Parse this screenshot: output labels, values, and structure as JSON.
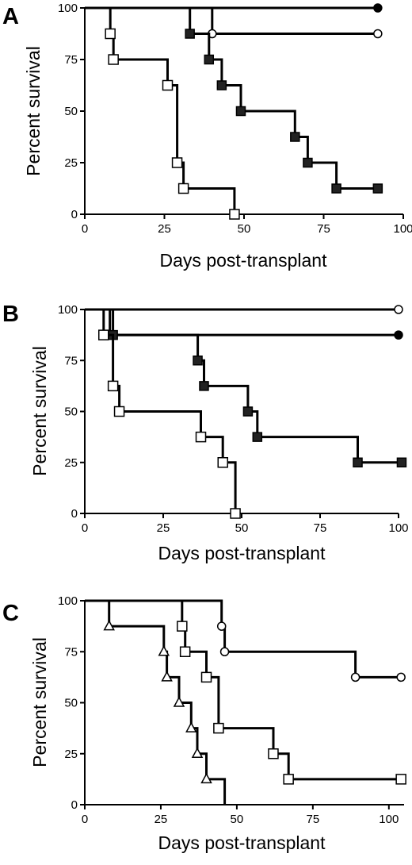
{
  "chart_data": [
    {
      "type": "line",
      "panel_label": "A",
      "xlabel": "Days post-transplant",
      "ylabel": "Percent survival",
      "xlim": [
        0,
        100
      ],
      "ylim": [
        0,
        100
      ],
      "xticks": [
        0,
        25,
        50,
        75,
        100
      ],
      "yticks": [
        0,
        25,
        50,
        75,
        100
      ],
      "grid": false,
      "series": [
        {
          "marker": "filled-circle",
          "steps": [
            [
              0,
              100
            ],
            [
              92,
              100
            ]
          ],
          "markers": [
            [
              92,
              100
            ]
          ]
        },
        {
          "marker": "open-circle",
          "steps": [
            [
              0,
              100
            ],
            [
              40,
              100
            ],
            [
              40,
              87.5
            ],
            [
              92,
              87.5
            ]
          ],
          "markers": [
            [
              40,
              87.5
            ],
            [
              92,
              87.5
            ]
          ]
        },
        {
          "marker": "filled-square",
          "steps": [
            [
              0,
              100
            ],
            [
              33,
              100
            ],
            [
              33,
              87.5
            ],
            [
              39,
              87.5
            ],
            [
              39,
              75
            ],
            [
              43,
              75
            ],
            [
              43,
              62.5
            ],
            [
              49,
              62.5
            ],
            [
              49,
              50
            ],
            [
              66,
              50
            ],
            [
              66,
              37.5
            ],
            [
              70,
              37.5
            ],
            [
              70,
              25
            ],
            [
              79,
              25
            ],
            [
              79,
              12.5
            ],
            [
              92,
              12.5
            ]
          ],
          "markers": [
            [
              33,
              87.5
            ],
            [
              39,
              75
            ],
            [
              43,
              62.5
            ],
            [
              49,
              50
            ],
            [
              66,
              37.5
            ],
            [
              70,
              25
            ],
            [
              79,
              12.5
            ],
            [
              92,
              12.5
            ]
          ]
        },
        {
          "marker": "open-square",
          "steps": [
            [
              8,
              100
            ],
            [
              8,
              87.5
            ],
            [
              9,
              87.5
            ],
            [
              9,
              75
            ],
            [
              26,
              75
            ],
            [
              26,
              62.5
            ],
            [
              29,
              62.5
            ],
            [
              29,
              25
            ],
            [
              31,
              25
            ],
            [
              31,
              12.5
            ],
            [
              47,
              12.5
            ],
            [
              47,
              0
            ]
          ],
          "markers": [
            [
              8,
              87.5
            ],
            [
              9,
              75
            ],
            [
              26,
              62.5
            ],
            [
              29,
              25
            ],
            [
              31,
              12.5
            ],
            [
              47,
              0
            ]
          ]
        }
      ]
    },
    {
      "type": "line",
      "panel_label": "B",
      "xlabel": "Days post-transplant",
      "ylabel": "Percent survival",
      "xlim": [
        0,
        100
      ],
      "ylim": [
        0,
        100
      ],
      "xticks": [
        0,
        25,
        50,
        75,
        100
      ],
      "yticks": [
        0,
        25,
        50,
        75,
        100
      ],
      "grid": false,
      "series": [
        {
          "marker": "open-circle",
          "steps": [
            [
              0,
              100
            ],
            [
              100,
              100
            ]
          ],
          "markers": [
            [
              100,
              100
            ]
          ]
        },
        {
          "marker": "filled-circle",
          "steps": [
            [
              0,
              100
            ],
            [
              8,
              100
            ],
            [
              8,
              87.5
            ],
            [
              100,
              87.5
            ]
          ],
          "markers": [
            [
              100,
              87.5
            ]
          ]
        },
        {
          "marker": "filled-square",
          "steps": [
            [
              0,
              100
            ],
            [
              9,
              100
            ],
            [
              9,
              87.5
            ],
            [
              36,
              87.5
            ],
            [
              36,
              75
            ],
            [
              38,
              75
            ],
            [
              38,
              62.5
            ],
            [
              52,
              62.5
            ],
            [
              52,
              50
            ],
            [
              55,
              50
            ],
            [
              55,
              37.5
            ],
            [
              87,
              37.5
            ],
            [
              87,
              25
            ],
            [
              101,
              25
            ]
          ],
          "markers": [
            [
              9,
              87.5
            ],
            [
              36,
              75
            ],
            [
              38,
              62.5
            ],
            [
              52,
              50
            ],
            [
              55,
              37.5
            ],
            [
              87,
              25
            ],
            [
              101,
              25
            ]
          ]
        },
        {
          "marker": "open-square",
          "steps": [
            [
              6,
              100
            ],
            [
              6,
              87.5
            ],
            [
              9,
              87.5
            ],
            [
              9,
              62.5
            ],
            [
              11,
              62.5
            ],
            [
              11,
              50
            ],
            [
              37,
              50
            ],
            [
              37,
              37.5
            ],
            [
              44,
              37.5
            ],
            [
              44,
              25
            ],
            [
              48,
              25
            ],
            [
              48,
              0
            ]
          ],
          "markers": [
            [
              6,
              87.5
            ],
            [
              9,
              62.5
            ],
            [
              11,
              50
            ],
            [
              37,
              37.5
            ],
            [
              44,
              25
            ],
            [
              48,
              0
            ]
          ]
        }
      ]
    },
    {
      "type": "line",
      "panel_label": "C",
      "xlabel": "Days post-transplant",
      "ylabel": "Percent survival",
      "xlim": [
        0,
        105
      ],
      "ylim": [
        0,
        100
      ],
      "xticks": [
        0,
        25,
        50,
        75,
        100
      ],
      "yticks": [
        0,
        25,
        50,
        75,
        100
      ],
      "grid": false,
      "series": [
        {
          "marker": "open-circle",
          "steps": [
            [
              0,
              100
            ],
            [
              45,
              100
            ],
            [
              45,
              87.5
            ],
            [
              46,
              87.5
            ],
            [
              46,
              75
            ],
            [
              89,
              75
            ],
            [
              89,
              62.5
            ],
            [
              104,
              62.5
            ]
          ],
          "markers": [
            [
              45,
              87.5
            ],
            [
              46,
              75
            ],
            [
              89,
              62.5
            ],
            [
              104,
              62.5
            ]
          ]
        },
        {
          "marker": "open-square",
          "steps": [
            [
              32,
              100
            ],
            [
              32,
              87.5
            ],
            [
              33,
              87.5
            ],
            [
              33,
              75
            ],
            [
              40,
              75
            ],
            [
              40,
              62.5
            ],
            [
              44,
              62.5
            ],
            [
              44,
              37.5
            ],
            [
              62,
              37.5
            ],
            [
              62,
              25
            ],
            [
              67,
              25
            ],
            [
              67,
              12.5
            ],
            [
              104,
              12.5
            ]
          ],
          "markers": [
            [
              32,
              87.5
            ],
            [
              33,
              75
            ],
            [
              40,
              62.5
            ],
            [
              44,
              37.5
            ],
            [
              62,
              25
            ],
            [
              67,
              12.5
            ],
            [
              104,
              12.5
            ]
          ]
        },
        {
          "marker": "open-triangle",
          "steps": [
            [
              8,
              100
            ],
            [
              8,
              87.5
            ],
            [
              26,
              87.5
            ],
            [
              26,
              75
            ],
            [
              27,
              75
            ],
            [
              27,
              62.5
            ],
            [
              31,
              62.5
            ],
            [
              31,
              50
            ],
            [
              35,
              50
            ],
            [
              35,
              37.5
            ],
            [
              37,
              37.5
            ],
            [
              37,
              25
            ],
            [
              40,
              25
            ],
            [
              40,
              12.5
            ],
            [
              46,
              12.5
            ],
            [
              46,
              0
            ]
          ],
          "markers": [
            [
              8,
              87.5
            ],
            [
              26,
              75
            ],
            [
              27,
              62.5
            ],
            [
              31,
              50
            ],
            [
              35,
              37.5
            ],
            [
              37,
              25
            ],
            [
              40,
              12.5
            ]
          ]
        }
      ]
    }
  ]
}
